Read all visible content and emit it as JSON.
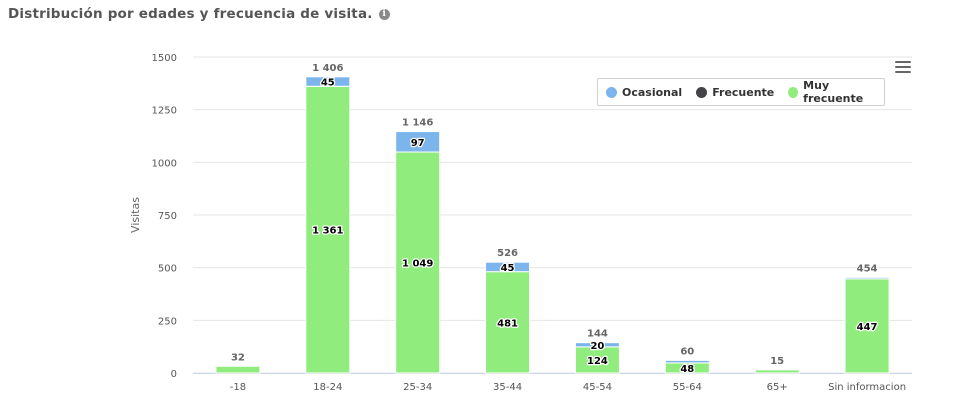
{
  "header": {
    "title": "Distribución por edades y frecuencia de visita.",
    "info_icon": "info-icon"
  },
  "toolbar": {
    "menu_icon": "hamburger-menu-icon"
  },
  "colors": {
    "ocasional": "#7cb5ec",
    "frecuente": "#434348",
    "muy_frecuente": "#90ed7d",
    "grid": "#e6e6e6"
  },
  "chart_data": {
    "type": "bar",
    "stacked": true,
    "categories": [
      "-18",
      "18-24",
      "25-34",
      "35-44",
      "45-54",
      "55-64",
      "65+",
      "Sin informacion"
    ],
    "series": [
      {
        "name": "Ocasional",
        "color": "#7cb5ec",
        "values": [
          0,
          45,
          97,
          45,
          20,
          12,
          0,
          7
        ],
        "labels": [
          "",
          "45",
          "97",
          "45",
          "20",
          "",
          "",
          ""
        ]
      },
      {
        "name": "Frecuente",
        "color": "#434348",
        "values": [
          0,
          0,
          0,
          0,
          0,
          0,
          0,
          0
        ],
        "labels": [
          "",
          "",
          "",
          "",
          "",
          "",
          "",
          ""
        ]
      },
      {
        "name": "Muy frecuente",
        "color": "#90ed7d",
        "values": [
          32,
          1361,
          1049,
          481,
          124,
          48,
          15,
          447
        ],
        "labels": [
          "",
          "1 361",
          "1 049",
          "481",
          "124",
          "48",
          "",
          "447"
        ]
      }
    ],
    "totals": [
      "32",
      "1 406",
      "1 146",
      "526",
      "144",
      "60",
      "15",
      "454"
    ],
    "ylabel": "Visitas",
    "xlabel": "",
    "ylim": [
      0,
      1500
    ],
    "yticks": [
      0,
      250,
      500,
      750,
      1000,
      1250,
      1500
    ],
    "grid": true,
    "legend_position": "top-right"
  }
}
